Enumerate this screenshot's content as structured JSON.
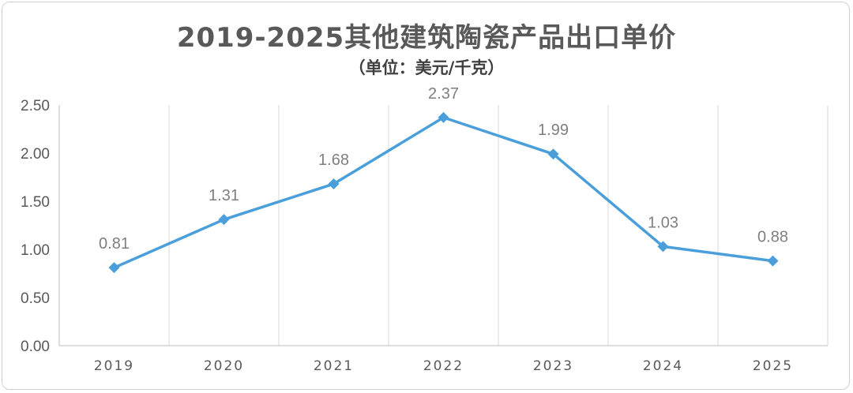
{
  "chart_data": {
    "type": "line",
    "title": "2019-2025其他建筑陶瓷产品出口单价",
    "subtitle": "（单位：美元/千克）",
    "categories": [
      "2019",
      "2020",
      "2021",
      "2022",
      "2023",
      "2024",
      "2025"
    ],
    "series": [
      {
        "values": [
          0.81,
          1.31,
          1.68,
          2.37,
          1.99,
          1.03,
          0.88
        ],
        "color": "#4a9fdb"
      }
    ],
    "data_labels": [
      "0.81",
      "1.31",
      "1.68",
      "2.37",
      "1.99",
      "1.03",
      "0.88"
    ],
    "yticks": [
      "0.00",
      "0.50",
      "1.00",
      "1.50",
      "2.00",
      "2.50"
    ],
    "ylim": [
      0,
      2.5
    ],
    "xlabel": "",
    "ylabel": "",
    "grid": "vertical",
    "legend": "none",
    "marker": "diamond"
  }
}
